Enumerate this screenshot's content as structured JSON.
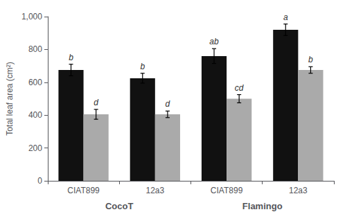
{
  "chart_data": {
    "type": "bar",
    "categories": [
      "CIAT899",
      "12a3",
      "CIAT899",
      "12a3"
    ],
    "group_labels": [
      "CocoT",
      "Flamingo"
    ],
    "series": [
      {
        "color": "#111111",
        "values": [
          675,
          625,
          760,
          920
        ],
        "errors": [
          35,
          30,
          45,
          35
        ],
        "annotations": [
          "b",
          "b",
          "ab",
          "a"
        ]
      },
      {
        "color": "#aaaaaa",
        "values": [
          405,
          405,
          500,
          675
        ],
        "errors": [
          30,
          20,
          25,
          20
        ],
        "annotations": [
          "d",
          "d",
          "cd",
          "b"
        ]
      }
    ],
    "ylabel": "Total leaf area (cm²)",
    "ylim": [
      0,
      1000
    ],
    "yticks": [
      0,
      200,
      400,
      600,
      800,
      1000
    ],
    "grid": false
  }
}
